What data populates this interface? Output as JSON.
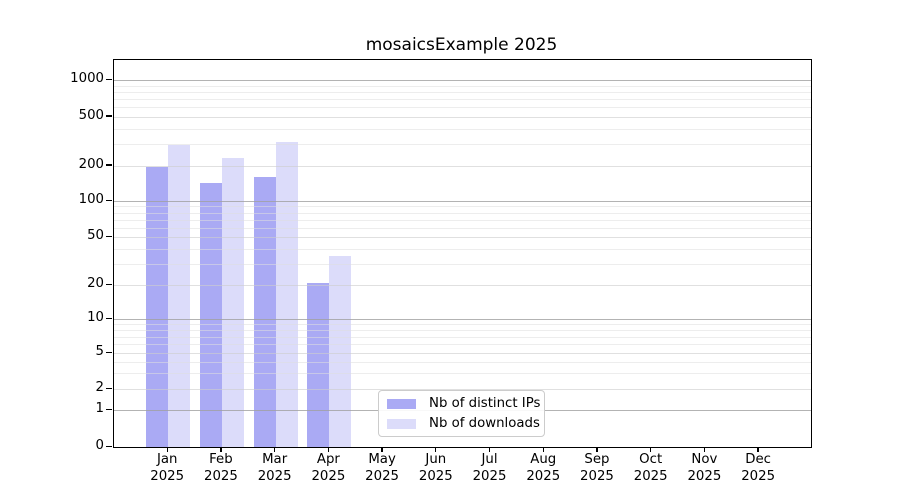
{
  "chart_data": {
    "type": "bar",
    "title": "mosaicsExample 2025",
    "categories": [
      "Jan",
      "Feb",
      "Mar",
      "Apr",
      "May",
      "Jun",
      "Jul",
      "Aug",
      "Sep",
      "Oct",
      "Nov",
      "Dec"
    ],
    "category_year": "2025",
    "series": [
      {
        "name": "Nb of distinct IPs",
        "color": "#aaaaf4",
        "values": [
          195,
          142,
          161,
          21,
          0,
          0,
          0,
          0,
          0,
          0,
          0,
          0
        ]
      },
      {
        "name": "Nb of downloads",
        "color": "#dcdcfa",
        "values": [
          295,
          232,
          314,
          35,
          0,
          0,
          0,
          0,
          0,
          0,
          0,
          0
        ]
      }
    ],
    "y_ticks": [
      0,
      1,
      2,
      5,
      10,
      20,
      50,
      100,
      200,
      500,
      1000
    ],
    "yscale": "symlog",
    "ylim": [
      0,
      1500
    ],
    "grid": "both-horizontal",
    "legend_position": "lower-center-inside"
  }
}
